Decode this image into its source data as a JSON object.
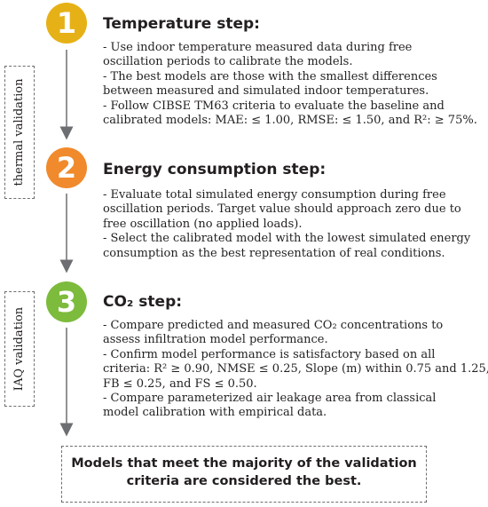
{
  "steps": [
    {
      "number": "1",
      "color": "#e6b116",
      "title": "Temperature step:",
      "lines": [
        "- Use indoor temperature measured data during free",
        "oscillation periods to calibrate the models.",
        "- The best models are those with the smallest differences",
        "between measured and simulated indoor temperatures.",
        "- Follow CIBSE TM63 criteria to evaluate the baseline and",
        "calibrated models: MAE: ≤ 1.00, RMSE: ≤ 1.50, and R²: ≥ 75%."
      ]
    },
    {
      "number": "2",
      "color": "#f08a2c",
      "title": "Energy consumption step:",
      "lines": [
        "- Evaluate total simulated energy consumption during free",
        "oscillation periods. Target value should approach zero due to",
        "free oscillation (no applied loads).",
        "- Select the calibrated model with the lowest simulated energy",
        "consumption as the best representation of real conditions."
      ]
    },
    {
      "number": "3",
      "color": "#7dbb3c",
      "title": "CO₂ step:",
      "lines": [
        "- Compare predicted and measured CO₂ concentrations to",
        "assess infiltration model performance.",
        "- Confirm model performance is satisfactory based on all",
        "criteria: R² ≥ 0.90, NMSE ≤ 0.25, Slope (m) within 0.75 and 1.25,",
        "FB ≤ 0.25, and FS ≤ 0.50.",
        "- Compare parameterized air leakage area from classical",
        "model calibration with empirical data."
      ]
    }
  ],
  "labels": {
    "thermal": "thermal validation",
    "iaq": "IAQ validation"
  },
  "conclusion": {
    "lines": [
      "Models that meet the majority of the validation",
      "criteria are considered the best."
    ]
  },
  "colors": {
    "arrow": "#6d6e71",
    "dashed_border": "#6d6e71"
  }
}
